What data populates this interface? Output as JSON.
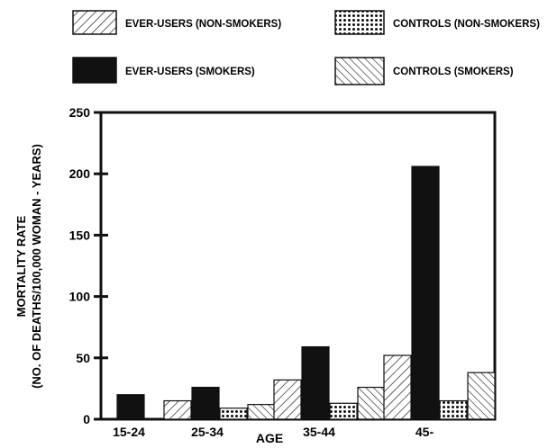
{
  "chart_data": {
    "type": "bar",
    "categories": [
      "15-24",
      "25-34",
      "35-44",
      "45-"
    ],
    "series": [
      {
        "name": "EVER-USERS (NON-SMOKERS)",
        "values": [
          null,
          15,
          32,
          52
        ],
        "pattern": "hatch-right"
      },
      {
        "name": "EVER-USERS (SMOKERS)",
        "values": [
          20,
          26,
          59,
          206
        ],
        "pattern": "solid"
      },
      {
        "name": "CONTROLS (NON-SMOKERS)",
        "values": [
          null,
          9,
          13,
          15
        ],
        "pattern": "dots"
      },
      {
        "name": "CONTROLS (SMOKERS)",
        "values": [
          null,
          12,
          26,
          38
        ],
        "pattern": "hatch-left"
      }
    ],
    "xlabel": "AGE",
    "ylabel_line1": "MORTALITY RATE",
    "ylabel_line2": "(NO. OF DEATHS/100,000 WOMAN - YEARS)",
    "yticks": [
      0,
      50,
      100,
      150,
      200,
      250
    ],
    "ylim": [
      0,
      250
    ],
    "grid": false,
    "legend_position": "top"
  },
  "colors": {
    "ink": "#111111",
    "background": "#ffffff"
  }
}
